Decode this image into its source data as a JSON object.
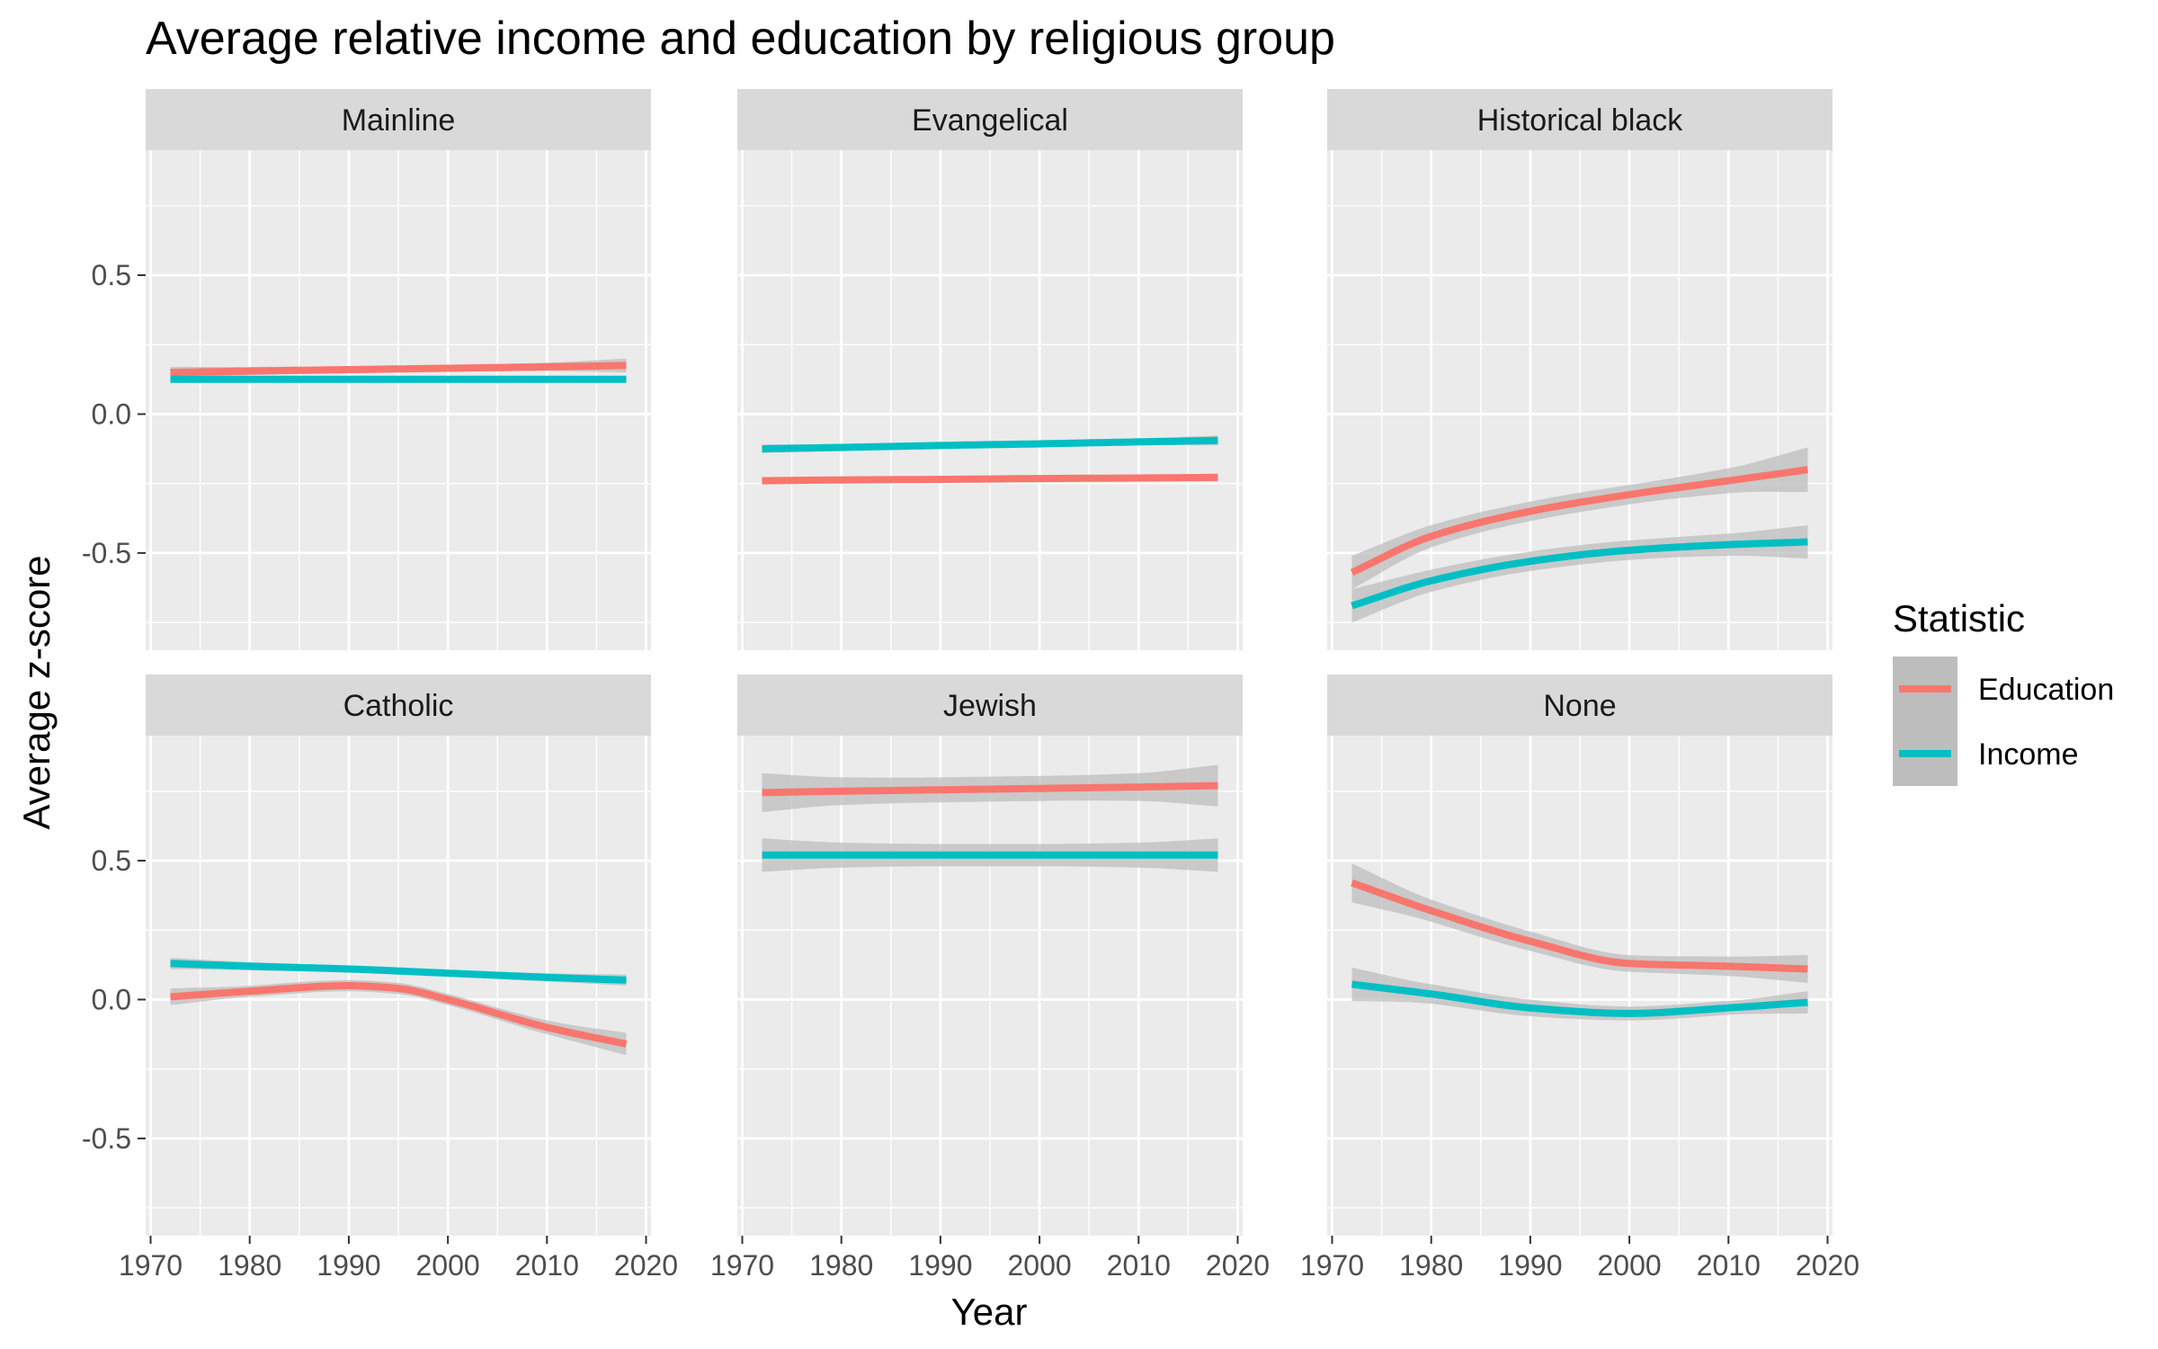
{
  "chart_data": {
    "type": "line",
    "title": "Average relative income and education by religious group",
    "xlabel": "Year",
    "ylabel": "Average z-score",
    "xlim": [
      1969.5,
      2020.5
    ],
    "ylim": [
      -0.85,
      0.95
    ],
    "x_ticks": [
      1970,
      1980,
      1990,
      2000,
      2010,
      2020
    ],
    "x_tick_labels": [
      "1970",
      "1980",
      "1990",
      "2000",
      "2010",
      "2020"
    ],
    "y_ticks": [
      -0.5,
      0.0,
      0.5
    ],
    "y_tick_labels": [
      "-0.5",
      "0.0",
      "0.5"
    ],
    "grid": true,
    "legend": {
      "title": "Statistic",
      "placement": "right",
      "entries": [
        {
          "name": "Education",
          "color": "#F8766D"
        },
        {
          "name": "Income",
          "color": "#00BFC4"
        }
      ]
    },
    "ribbon_color": "#BDBDBD",
    "panel_background": "#EBEBEB",
    "strip_background": "#D9D9D9",
    "facets": [
      {
        "label": "Mainline",
        "series": [
          {
            "name": "Education",
            "x": [
              1972,
              1980,
              1990,
              2000,
              2010,
              2018
            ],
            "y": [
              0.15,
              0.155,
              0.16,
              0.165,
              0.17,
              0.175
            ],
            "se": [
              0.02,
              0.015,
              0.012,
              0.012,
              0.015,
              0.025
            ]
          },
          {
            "name": "Income",
            "x": [
              1972,
              1980,
              1990,
              2000,
              2010,
              2018
            ],
            "y": [
              0.125,
              0.125,
              0.125,
              0.125,
              0.125,
              0.125
            ],
            "se": [
              0.01,
              0.008,
              0.007,
              0.007,
              0.008,
              0.01
            ]
          }
        ]
      },
      {
        "label": "Evangelical",
        "series": [
          {
            "name": "Education",
            "x": [
              1972,
              1980,
              1990,
              2000,
              2010,
              2018
            ],
            "y": [
              -0.24,
              -0.237,
              -0.235,
              -0.232,
              -0.23,
              -0.228
            ],
            "se": [
              0.012,
              0.01,
              0.009,
              0.009,
              0.01,
              0.014
            ]
          },
          {
            "name": "Income",
            "x": [
              1972,
              1980,
              1990,
              2000,
              2010,
              2018
            ],
            "y": [
              -0.125,
              -0.12,
              -0.113,
              -0.107,
              -0.1,
              -0.095
            ],
            "se": [
              0.015,
              0.012,
              0.01,
              0.01,
              0.012,
              0.018
            ]
          }
        ]
      },
      {
        "label": "Historical black",
        "series": [
          {
            "name": "Education",
            "x": [
              1972,
              1980,
              1990,
              2000,
              2010,
              2018
            ],
            "y": [
              -0.57,
              -0.44,
              -0.35,
              -0.29,
              -0.24,
              -0.2
            ],
            "se": [
              0.06,
              0.04,
              0.035,
              0.035,
              0.045,
              0.08
            ]
          },
          {
            "name": "Income",
            "x": [
              1972,
              1980,
              1990,
              2000,
              2010,
              2018
            ],
            "y": [
              -0.69,
              -0.6,
              -0.53,
              -0.49,
              -0.47,
              -0.46
            ],
            "se": [
              0.06,
              0.04,
              0.035,
              0.035,
              0.04,
              0.06
            ]
          }
        ]
      },
      {
        "label": "Catholic",
        "series": [
          {
            "name": "Education",
            "x": [
              1972,
              1980,
              1990,
              1995,
              2000,
              2010,
              2018
            ],
            "y": [
              0.01,
              0.03,
              0.05,
              0.04,
              0.0,
              -0.1,
              -0.16
            ],
            "se": [
              0.03,
              0.02,
              0.02,
              0.02,
              0.02,
              0.025,
              0.04
            ]
          },
          {
            "name": "Income",
            "x": [
              1972,
              1980,
              1990,
              2000,
              2010,
              2018
            ],
            "y": [
              0.13,
              0.12,
              0.11,
              0.095,
              0.08,
              0.07
            ],
            "se": [
              0.02,
              0.015,
              0.012,
              0.012,
              0.015,
              0.02
            ]
          }
        ]
      },
      {
        "label": "Jewish",
        "series": [
          {
            "name": "Education",
            "x": [
              1972,
              1980,
              1990,
              2000,
              2010,
              2018
            ],
            "y": [
              0.745,
              0.75,
              0.755,
              0.76,
              0.765,
              0.77
            ],
            "se": [
              0.07,
              0.05,
              0.045,
              0.045,
              0.05,
              0.075
            ]
          },
          {
            "name": "Income",
            "x": [
              1972,
              1980,
              1990,
              2000,
              2010,
              2018
            ],
            "y": [
              0.52,
              0.52,
              0.52,
              0.52,
              0.52,
              0.52
            ],
            "se": [
              0.06,
              0.045,
              0.04,
              0.04,
              0.045,
              0.06
            ]
          }
        ]
      },
      {
        "label": "None",
        "series": [
          {
            "name": "Education",
            "x": [
              1972,
              1980,
              1990,
              2000,
              2010,
              2018
            ],
            "y": [
              0.42,
              0.32,
              0.21,
              0.13,
              0.12,
              0.11
            ],
            "se": [
              0.07,
              0.04,
              0.035,
              0.03,
              0.035,
              0.05
            ]
          },
          {
            "name": "Income",
            "x": [
              1972,
              1980,
              1990,
              2000,
              2010,
              2018
            ],
            "y": [
              0.055,
              0.02,
              -0.03,
              -0.05,
              -0.03,
              -0.01
            ],
            "se": [
              0.06,
              0.035,
              0.03,
              0.025,
              0.025,
              0.04
            ]
          }
        ]
      }
    ]
  }
}
